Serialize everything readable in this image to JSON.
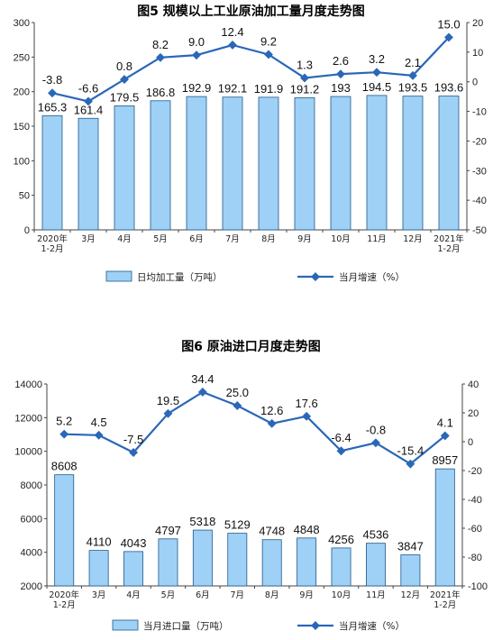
{
  "chart_data": [
    {
      "type": "bar",
      "title": "图5  规模以上工业原油加工量月度走势图",
      "categories": [
        "2020年\n1-2月",
        "3月",
        "4月",
        "5月",
        "6月",
        "7月",
        "8月",
        "9月",
        "10月",
        "11月",
        "12月",
        "2021年\n1-2月"
      ],
      "series": [
        {
          "name": "日均加工量（万吨）",
          "type": "bar",
          "axis": "left",
          "values": [
            165.3,
            161.4,
            179.5,
            186.8,
            192.9,
            192.1,
            191.9,
            191.2,
            193.0,
            194.5,
            193.5,
            193.6
          ]
        },
        {
          "name": "当月增速（%）",
          "type": "line",
          "axis": "right",
          "values": [
            -3.8,
            -6.6,
            0.8,
            8.2,
            9.0,
            12.4,
            9.2,
            1.3,
            2.6,
            3.2,
            2.1,
            15.0
          ]
        }
      ],
      "ylim": [
        0,
        300
      ],
      "y2lim": [
        -50,
        20
      ],
      "yticks": [
        "0",
        "50",
        "100",
        "150",
        "200",
        "250",
        "300"
      ],
      "y2ticks": [
        "-50",
        "-40",
        "-30",
        "-20",
        "-10",
        "0",
        "10",
        "20"
      ],
      "grid": false,
      "legend_position": "bottom",
      "colors": {
        "bar_fill": "#9fd0f5",
        "bar_stroke": "#1f5a8c",
        "line": "#2a67b8"
      }
    },
    {
      "type": "bar",
      "title": "图6  原油进口月度走势图",
      "categories": [
        "2020年\n1-2月",
        "3月",
        "4月",
        "5月",
        "6月",
        "7月",
        "8月",
        "9月",
        "10月",
        "11月",
        "12月",
        "2021年\n1-2月"
      ],
      "series": [
        {
          "name": "当月进口量（万吨）",
          "type": "bar",
          "axis": "left",
          "values": [
            8608,
            4110,
            4043,
            4797,
            5318,
            5129,
            4748,
            4848,
            4256,
            4536,
            3847,
            8957
          ]
        },
        {
          "name": "当月增速（%）",
          "type": "line",
          "axis": "right",
          "values": [
            5.2,
            4.5,
            -7.5,
            19.5,
            34.4,
            25.0,
            12.6,
            17.6,
            -6.4,
            -0.8,
            -15.4,
            4.1
          ]
        }
      ],
      "ylim": [
        2000,
        14000
      ],
      "y2lim": [
        -100,
        40
      ],
      "yticks": [
        "2000",
        "4000",
        "6000",
        "8000",
        "10000",
        "12000",
        "14000"
      ],
      "y2ticks": [
        "-100",
        "-80",
        "-60",
        "-40",
        "-20",
        "0",
        "20",
        "40"
      ],
      "grid": false,
      "legend_position": "bottom",
      "colors": {
        "bar_fill": "#9fd0f5",
        "bar_stroke": "#1f5a8c",
        "line": "#2a67b8"
      }
    }
  ]
}
